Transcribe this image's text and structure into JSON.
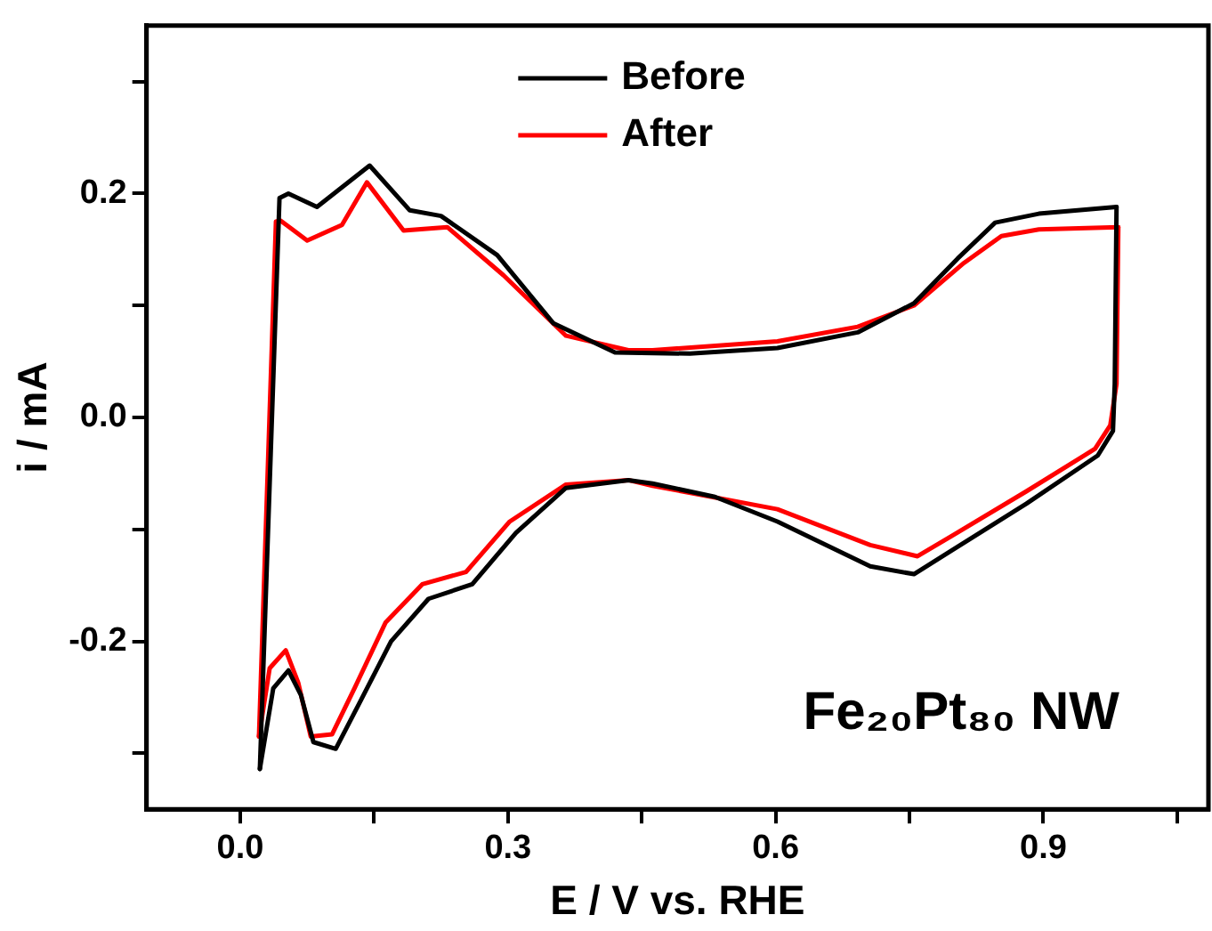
{
  "chart_data": {
    "type": "line",
    "xlabel": "E / V vs. RHE",
    "ylabel": "i / mA",
    "xlim": [
      -0.105,
      1.085
    ],
    "ylim": [
      -0.35,
      0.35
    ],
    "xticks": [
      {
        "value": 0,
        "label": "0.0"
      },
      {
        "value": 0.15,
        "label": null
      },
      {
        "value": 0.3,
        "label": "0.3"
      },
      {
        "value": 0.45,
        "label": null
      },
      {
        "value": 0.6,
        "label": "0.6"
      },
      {
        "value": 0.75,
        "label": null
      },
      {
        "value": 0.9,
        "label": "0.9"
      },
      {
        "value": 1.05,
        "label": null
      }
    ],
    "yticks": [
      {
        "value": -0.3,
        "label": null
      },
      {
        "value": -0.2,
        "label": "-0.2"
      },
      {
        "value": -0.1,
        "label": null
      },
      {
        "value": 0,
        "label": "0.0"
      },
      {
        "value": 0.1,
        "label": null
      },
      {
        "value": 0.2,
        "label": "0.2"
      },
      {
        "value": 0.3,
        "label": null
      }
    ],
    "legend": "top",
    "marker": "none",
    "line_style": "solid",
    "grid": false,
    "annotations": [
      "Fe₂₀Pt₈₀ NW"
    ],
    "series": [
      {
        "name": "Before",
        "color": "#000000",
        "x": [
          0.022,
          0.044,
          0.054,
          0.086,
          0.145,
          0.19,
          0.225,
          0.288,
          0.351,
          0.42,
          0.504,
          0.602,
          0.692,
          0.755,
          0.804,
          0.846,
          0.895,
          0.982
        ],
        "values": [
          -0.314,
          0.196,
          0.2,
          0.188,
          0.225,
          0.185,
          0.18,
          0.145,
          0.084,
          0.058,
          0.057,
          0.062,
          0.076,
          0.102,
          0.142,
          0.174,
          0.182,
          0.188
        ]
      },
      {
        "color": "#000000",
        "x": [
          0.022,
          0.037,
          0.054,
          0.068,
          0.082,
          0.107,
          0.135,
          0.169,
          0.211,
          0.26,
          0.309,
          0.365,
          0.435,
          0.462,
          0.532,
          0.602,
          0.706,
          0.755,
          0.797,
          0.881,
          0.961,
          0.978,
          0.98,
          0.982
        ],
        "values": [
          -0.314,
          -0.242,
          -0.226,
          -0.248,
          -0.29,
          -0.296,
          -0.253,
          -0.2,
          -0.162,
          -0.149,
          -0.103,
          -0.063,
          -0.056,
          -0.059,
          -0.071,
          -0.093,
          -0.133,
          -0.14,
          -0.119,
          -0.077,
          -0.034,
          -0.012,
          0.03,
          0.188
        ]
      },
      {
        "name": "After",
        "color": "#ff0000",
        "x": [
          0.021,
          0.04,
          0.045,
          0.075,
          0.114,
          0.142,
          0.183,
          0.232,
          0.295,
          0.365,
          0.435,
          0.462,
          0.602,
          0.692,
          0.755,
          0.811,
          0.853,
          0.895,
          0.984
        ],
        "values": [
          -0.285,
          0.175,
          0.176,
          0.158,
          0.172,
          0.21,
          0.167,
          0.17,
          0.127,
          0.073,
          0.06,
          0.06,
          0.068,
          0.081,
          0.1,
          0.138,
          0.162,
          0.168,
          0.17
        ]
      },
      {
        "color": "#ff0000",
        "x": [
          0.021,
          0.033,
          0.051,
          0.065,
          0.079,
          0.103,
          0.128,
          0.163,
          0.204,
          0.253,
          0.302,
          0.365,
          0.435,
          0.462,
          0.602,
          0.706,
          0.759,
          0.797,
          0.881,
          0.958,
          0.975,
          0.982,
          0.984
        ],
        "values": [
          -0.285,
          -0.224,
          -0.208,
          -0.237,
          -0.285,
          -0.283,
          -0.242,
          -0.183,
          -0.149,
          -0.138,
          -0.093,
          -0.06,
          -0.056,
          -0.061,
          -0.082,
          -0.114,
          -0.124,
          -0.106,
          -0.066,
          -0.028,
          -0.007,
          0.03,
          0.17
        ]
      }
    ]
  }
}
